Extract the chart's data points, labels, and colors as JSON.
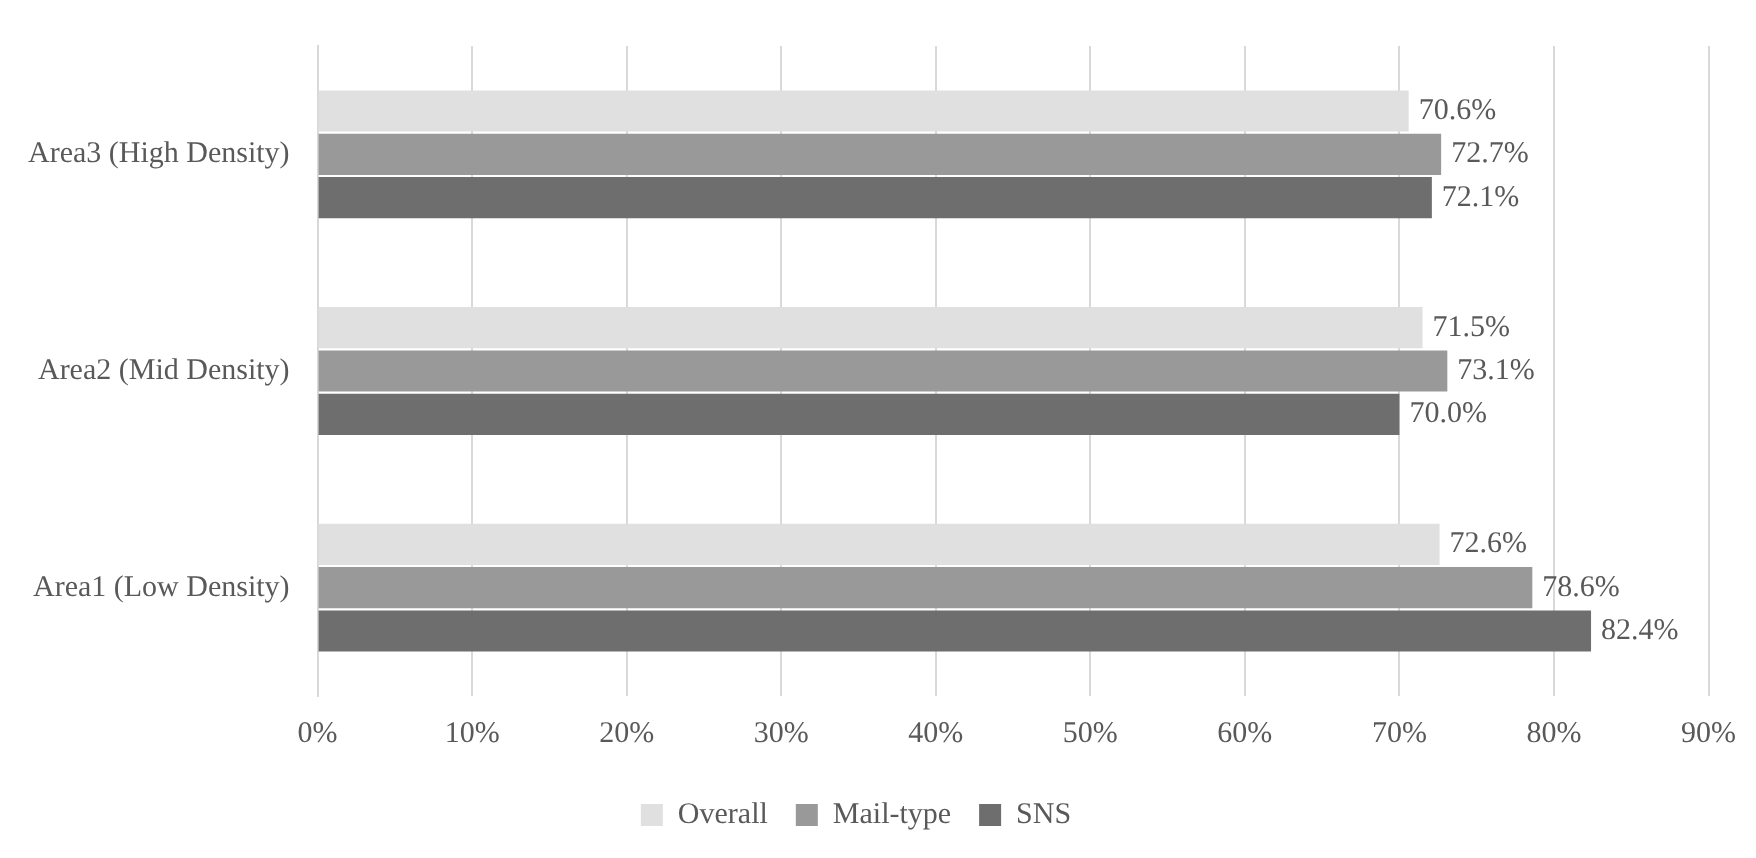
{
  "chart_data": {
    "type": "bar",
    "orientation": "horizontal",
    "categories": [
      "Area3 (High Density)",
      "Area2 (Mid Density)",
      "Area1 (Low Density)"
    ],
    "series": [
      {
        "name": "Overall",
        "color": "#e0e0e0",
        "values": [
          70.6,
          71.5,
          72.6
        ],
        "value_labels": [
          "70.6%",
          "71.5%",
          "72.6%"
        ]
      },
      {
        "name": "Mail-type",
        "color": "#999999",
        "values": [
          72.7,
          73.1,
          78.6
        ],
        "value_labels": [
          "72.7%",
          "73.1%",
          "78.6%"
        ]
      },
      {
        "name": "SNS",
        "color": "#6e6e6e",
        "values": [
          72.1,
          70.0,
          82.4
        ],
        "value_labels": [
          "72.1%",
          "70.0%",
          "82.4%"
        ]
      }
    ],
    "xlim": [
      0,
      90
    ],
    "xticks": [
      {
        "value": 0,
        "label": "0%"
      },
      {
        "value": 10,
        "label": "10%"
      },
      {
        "value": 20,
        "label": "20%"
      },
      {
        "value": 30,
        "label": "30%"
      },
      {
        "value": 40,
        "label": "40%"
      },
      {
        "value": 50,
        "label": "50%"
      },
      {
        "value": 60,
        "label": "60%"
      },
      {
        "value": 70,
        "label": "70%"
      },
      {
        "value": 80,
        "label": "80%"
      },
      {
        "value": 90,
        "label": "90%"
      }
    ],
    "grid": "x",
    "legend": "bottom"
  }
}
